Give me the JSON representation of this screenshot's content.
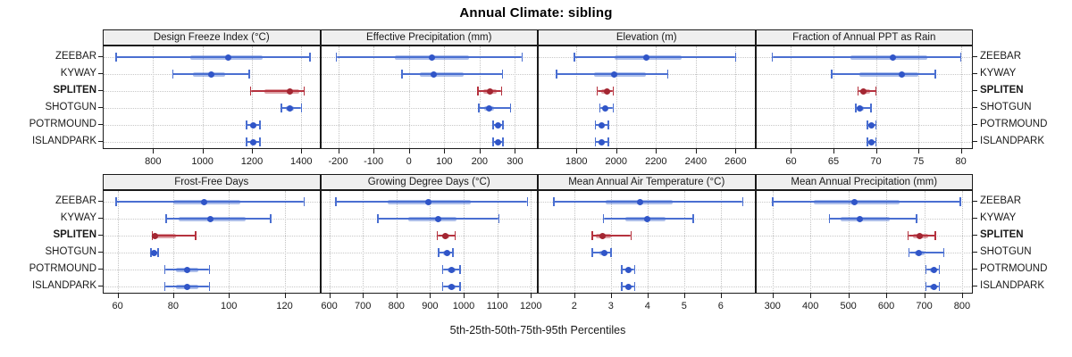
{
  "title": "Annual Climate: sibling",
  "colors": {
    "blue_line": "#4a6fd1",
    "blue_dot": "#3055c8",
    "blue_band": "#4a6fd1",
    "red_line": "#b5323e",
    "red_dot": "#a32632",
    "red_band": "#b5323e",
    "strip_bg": "#efefef",
    "panel_border": "#1a1a1a",
    "grid": "#c3c3c3"
  },
  "chart_data": {
    "type": "scatter",
    "variant": "percentile interval dotplot: dot = median, thick band = 25th-75th, whisker with end caps = 5th-95th",
    "layout": "2 rows x 4 columns of panels, shared category axis, row labels on both left and right sides",
    "title": "Annual Climate: sibling",
    "xlabel": "5th-25th-50th-75th-95th Percentiles",
    "categories": [
      "ZEEBAR",
      "KYWAY",
      "SPLITEN",
      "SHOTGUN",
      "POTRMOUND",
      "ISLANDPARK"
    ],
    "highlight_category": "SPLITEN",
    "grid": "dotted vertical gridlines at ticks, dotted horizontal reference line per category",
    "panels": [
      {
        "title": "Design Freeze Index (°C)",
        "row": 0,
        "col": 0,
        "xlim": [
          600,
          1473
        ],
        "ticks": [
          800,
          1000,
          1200,
          1400
        ],
        "values": [
          [
            650,
            950,
            1105,
            1245,
            1435
          ],
          [
            880,
            960,
            1035,
            1090,
            1190
          ],
          [
            1195,
            1250,
            1355,
            1390,
            1412
          ],
          [
            1320,
            1338,
            1353,
            1370,
            1400
          ],
          [
            1178,
            1192,
            1205,
            1218,
            1232
          ],
          [
            1178,
            1192,
            1205,
            1218,
            1232
          ]
        ]
      },
      {
        "title": "Effective Precipitation (mm)",
        "row": 0,
        "col": 1,
        "xlim": [
          -248,
          362
        ],
        "ticks": [
          -200,
          -100,
          0,
          100,
          200,
          300
        ],
        "values": [
          [
            -205,
            -40,
            65,
            170,
            320
          ],
          [
            -20,
            30,
            70,
            155,
            265
          ],
          [
            195,
            210,
            230,
            248,
            262
          ],
          [
            198,
            212,
            228,
            242,
            288
          ],
          [
            238,
            246,
            252,
            258,
            266
          ],
          [
            238,
            246,
            252,
            258,
            266
          ]
        ]
      },
      {
        "title": "Elevation (m)",
        "row": 0,
        "col": 2,
        "xlim": [
          1610,
          2695
        ],
        "ticks": [
          1800,
          2000,
          2200,
          2400,
          2600
        ],
        "values": [
          [
            1790,
            1990,
            2150,
            2330,
            2600
          ],
          [
            1700,
            1890,
            1990,
            2150,
            2260
          ],
          [
            1905,
            1925,
            1955,
            1970,
            1985
          ],
          [
            1918,
            1932,
            1945,
            1958,
            1985
          ],
          [
            1895,
            1910,
            1925,
            1940,
            1960
          ],
          [
            1895,
            1910,
            1925,
            1940,
            1960
          ]
        ]
      },
      {
        "title": "Fraction of Annual PPT as Rain",
        "row": 0,
        "col": 3,
        "xlim": [
          55.9,
          81.3
        ],
        "ticks": [
          60,
          65,
          70,
          75,
          80
        ],
        "values": [
          [
            57.8,
            67,
            72,
            76,
            80
          ],
          [
            64.8,
            68,
            73,
            75,
            77
          ],
          [
            67.9,
            68.2,
            68.5,
            69.3,
            70
          ],
          [
            67.6,
            67.8,
            68.1,
            68.6,
            69.4
          ],
          [
            69,
            69.3,
            69.5,
            69.7,
            70
          ],
          [
            69,
            69.3,
            69.5,
            69.7,
            70
          ]
        ]
      },
      {
        "title": "Frost-Free Days",
        "row": 1,
        "col": 0,
        "xlim": [
          55,
          132.5
        ],
        "ticks": [
          60,
          80,
          100,
          120
        ],
        "values": [
          [
            59.5,
            80,
            91,
            104,
            127
          ],
          [
            77.5,
            82,
            93.5,
            106,
            115
          ],
          [
            72.5,
            73,
            73.5,
            81,
            88
          ],
          [
            72,
            72.5,
            73,
            73.5,
            74.5
          ],
          [
            77,
            81,
            85,
            89,
            93
          ],
          [
            77,
            81,
            85,
            89,
            93
          ]
        ]
      },
      {
        "title": "Growing Degree Days (°C)",
        "row": 1,
        "col": 1,
        "xlim": [
          576,
          1218
        ],
        "ticks": [
          600,
          700,
          800,
          900,
          1000,
          1100,
          1200
        ],
        "values": [
          [
            620,
            775,
            895,
            1020,
            1190
          ],
          [
            745,
            835,
            925,
            980,
            1105
          ],
          [
            922,
            935,
            945,
            958,
            975
          ],
          [
            925,
            940,
            952,
            960,
            968
          ],
          [
            938,
            952,
            964,
            975,
            990
          ],
          [
            938,
            952,
            964,
            975,
            990
          ]
        ]
      },
      {
        "title": "Mean Annual Air Temperature (°C)",
        "row": 1,
        "col": 2,
        "xlim": [
          1.03,
          6.92
        ],
        "ticks": [
          2,
          3,
          4,
          5,
          6
        ],
        "values": [
          [
            1.45,
            2.85,
            3.8,
            4.7,
            6.6
          ],
          [
            2.8,
            3.4,
            4.0,
            4.5,
            5.25
          ],
          [
            2.5,
            2.6,
            2.78,
            3.0,
            3.55
          ],
          [
            2.5,
            2.68,
            2.82,
            2.92,
            3.0
          ],
          [
            3.3,
            3.4,
            3.47,
            3.55,
            3.65
          ],
          [
            3.3,
            3.4,
            3.47,
            3.55,
            3.65
          ]
        ]
      },
      {
        "title": "Mean Annual Precipitation (mm)",
        "row": 1,
        "col": 3,
        "xlim": [
          257,
          826
        ],
        "ticks": [
          300,
          400,
          500,
          600,
          700,
          800
        ],
        "values": [
          [
            300,
            410,
            515,
            635,
            795
          ],
          [
            450,
            480,
            530,
            610,
            680
          ],
          [
            658,
            670,
            688,
            710,
            730
          ],
          [
            660,
            675,
            685,
            700,
            752
          ],
          [
            705,
            715,
            725,
            732,
            740
          ],
          [
            705,
            715,
            725,
            732,
            740
          ]
        ]
      }
    ]
  }
}
